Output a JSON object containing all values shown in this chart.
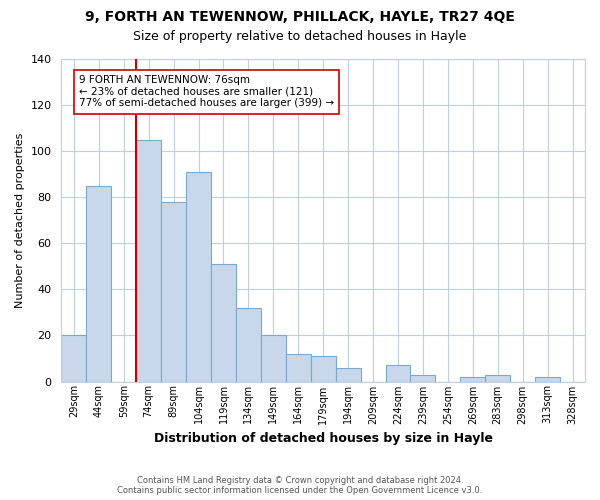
{
  "title": "9, FORTH AN TEWENNOW, PHILLACK, HAYLE, TR27 4QE",
  "subtitle": "Size of property relative to detached houses in Hayle",
  "xlabel": "Distribution of detached houses by size in Hayle",
  "ylabel": "Number of detached properties",
  "categories": [
    "29sqm",
    "44sqm",
    "59sqm",
    "74sqm",
    "89sqm",
    "104sqm",
    "119sqm",
    "134sqm",
    "149sqm",
    "164sqm",
    "179sqm",
    "194sqm",
    "209sqm",
    "224sqm",
    "239sqm",
    "254sqm",
    "269sqm",
    "283sqm",
    "298sqm",
    "313sqm",
    "328sqm"
  ],
  "values": [
    20,
    85,
    0,
    105,
    78,
    91,
    51,
    32,
    20,
    12,
    11,
    6,
    0,
    7,
    3,
    0,
    2,
    3,
    0,
    2,
    0
  ],
  "bar_color": "#c8d8ea",
  "bar_edge_color": "#7aa8cc",
  "reference_line_color": "#cc0000",
  "reference_line_index": 3,
  "annotation_text": "9 FORTH AN TEWENNOW: 76sqm\n← 23% of detached houses are smaller (121)\n77% of semi-detached houses are larger (399) →",
  "annotation_box_color": "#ffffff",
  "annotation_box_edge_color": "#cc0000",
  "ylim": [
    0,
    140
  ],
  "yticks": [
    0,
    20,
    40,
    60,
    80,
    100,
    120,
    140
  ],
  "footer_line1": "Contains HM Land Registry data © Crown copyright and database right 2024.",
  "footer_line2": "Contains public sector information licensed under the Open Government Licence v3.0.",
  "bg_color": "#ffffff",
  "grid_color": "#c0cfe0",
  "title_fontsize": 10,
  "subtitle_fontsize": 9,
  "ylabel_fontsize": 8,
  "xlabel_fontsize": 9
}
